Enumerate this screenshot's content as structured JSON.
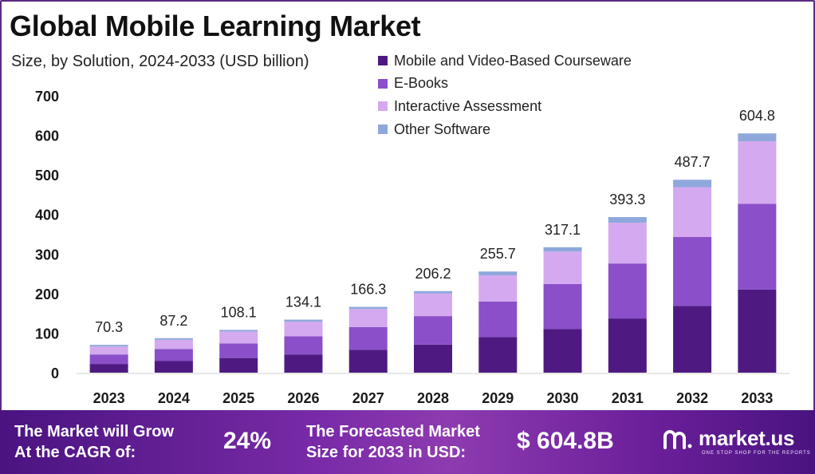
{
  "title": "Global Mobile Learning Market",
  "subtitle": "Size, by Solution, 2024-2033 (USD billion)",
  "colors": {
    "mobile_video": "#4e1a82",
    "ebooks": "#8b4fc9",
    "interactive": "#d4a9ef",
    "other": "#8fa8dc",
    "frame": "#5b2a86"
  },
  "chart_data": {
    "type": "bar",
    "stacked": true,
    "categories": [
      "2023",
      "2024",
      "2025",
      "2026",
      "2027",
      "2028",
      "2029",
      "2030",
      "2031",
      "2032",
      "2033"
    ],
    "series": [
      {
        "name": "Mobile and Video-Based Courseware",
        "values": [
          22,
          30,
          37,
          46,
          58,
          71,
          90,
          110,
          137,
          169,
          210
        ]
      },
      {
        "name": "E-Books",
        "values": [
          24,
          30,
          37,
          46,
          57,
          72,
          90,
          114,
          139,
          174,
          217
        ]
      },
      {
        "name": "Interactive Assessment",
        "values": [
          20,
          23,
          30,
          37,
          46,
          57,
          66,
          82,
          103,
          126,
          158
        ]
      },
      {
        "name": "Other Software",
        "values": [
          4.3,
          4.2,
          4.1,
          5.1,
          5.3,
          6.2,
          9.7,
          11.1,
          14.3,
          18.7,
          19.8
        ]
      }
    ],
    "totals": [
      "70.3",
      "87.2",
      "108.1",
      "134.1",
      "166.3",
      "206.2",
      "255.7",
      "317.1",
      "393.3",
      "487.7",
      "604.8"
    ],
    "yticks": [
      0,
      100,
      200,
      300,
      400,
      500,
      600,
      700
    ],
    "ylim": [
      0,
      700
    ],
    "grid": false,
    "legend_position": "top-center"
  },
  "footer": {
    "cagr_label_line1": "The Market will Grow",
    "cagr_label_line2": "At the CAGR of:",
    "cagr_value": "24%",
    "forecast_label_line1": "The Forecasted Market",
    "forecast_label_line2": "Size for 2033 in USD:",
    "forecast_value": "$ 604.8B",
    "logo_name": "market.us",
    "logo_tagline": "ONE STOP SHOP FOR THE REPORTS",
    "logo_icon": "market-us-logo-icon"
  }
}
